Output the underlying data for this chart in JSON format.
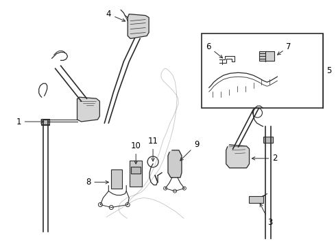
{
  "bg_color": "#ffffff",
  "line_color": "#2a2a2a",
  "fig_width": 4.9,
  "fig_height": 3.6,
  "dpi": 100,
  "font_size": 8.5,
  "seat_color": "#d8d8d8",
  "part_color": "#cccccc",
  "part_edge": "#2a2a2a"
}
